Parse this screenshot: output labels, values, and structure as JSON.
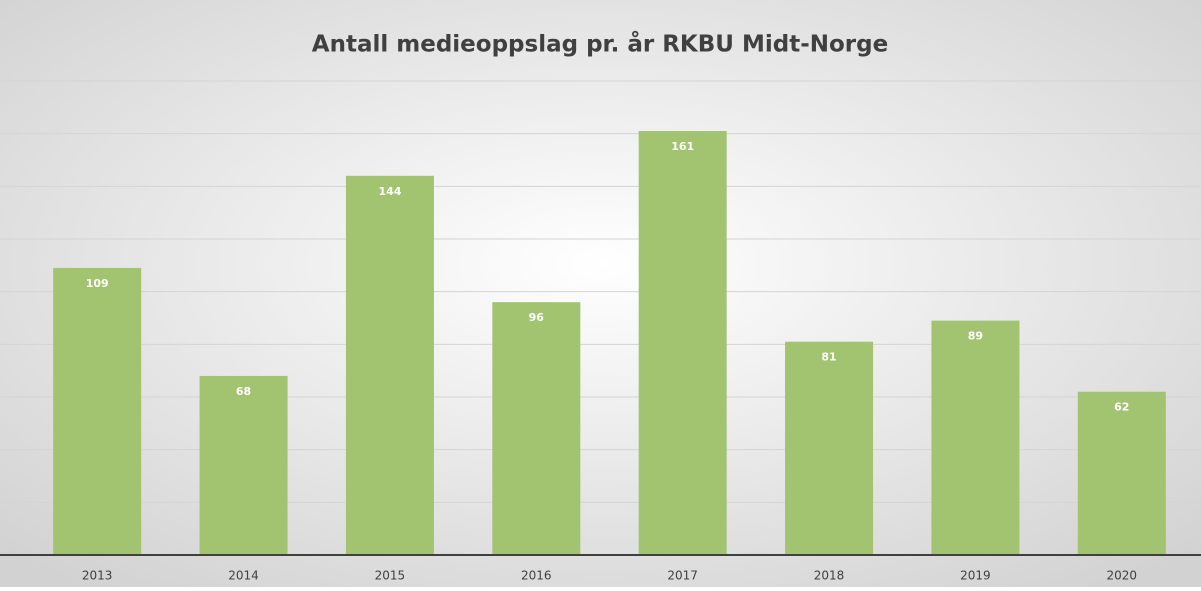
{
  "chart_data": {
    "type": "bar",
    "title": "Antall medieoppslag pr. år RKBU Midt-Norge",
    "categories": [
      "2013",
      "2014",
      "2015",
      "2016",
      "2017",
      "2018",
      "2019",
      "2020"
    ],
    "values": [
      109,
      68,
      144,
      96,
      161,
      81,
      89,
      62
    ],
    "color": "#a2c36f",
    "ylim": [
      0,
      180
    ],
    "yticks": [
      0,
      20,
      40,
      60,
      80,
      100,
      120,
      140,
      160,
      180
    ],
    "grid": true
  }
}
